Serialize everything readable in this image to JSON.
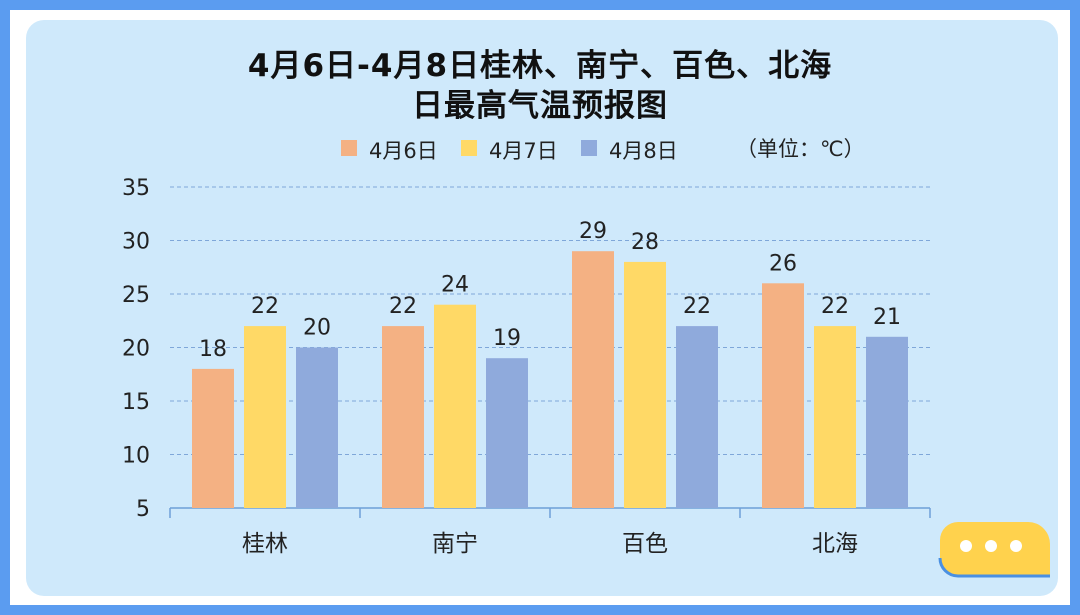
{
  "title_line1": "4月6日-4月8日桂林、南宁、百色、北海",
  "title_line2": "日最高气温预报图",
  "unit_label": "（单位：℃）",
  "chart_data": {
    "type": "bar",
    "categories": [
      "桂林",
      "南宁",
      "百色",
      "北海"
    ],
    "series": [
      {
        "name": "4月6日",
        "values": [
          18,
          22,
          29,
          26
        ],
        "color": "#f4b183"
      },
      {
        "name": "4月7日",
        "values": [
          22,
          24,
          28,
          22
        ],
        "color": "#ffd966"
      },
      {
        "name": "4月8日",
        "values": [
          20,
          19,
          22,
          21
        ],
        "color": "#8faadc"
      }
    ],
    "ylim": [
      5,
      35
    ],
    "yticks": [
      5,
      10,
      15,
      20,
      25,
      30,
      35
    ],
    "grid": true,
    "legend": "top",
    "data_labels": true
  },
  "colors": {
    "frame": "#5b9cf0",
    "panel": "#cfe9fb",
    "gridline": "#7fa7d9",
    "bubble": "#ffd24d"
  },
  "bubble_icon": "chat-bubble-icon"
}
